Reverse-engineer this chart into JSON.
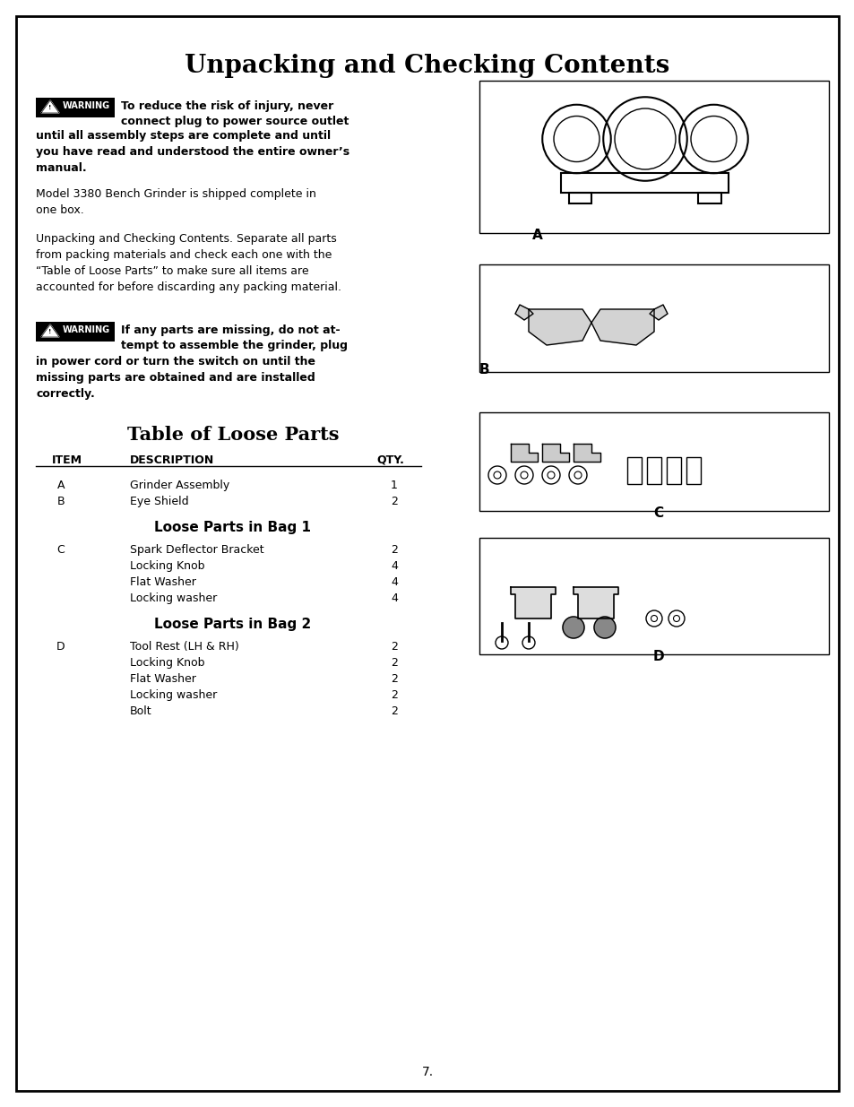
{
  "title": "Unpacking and Checking Contents",
  "title_fontsize": 20,
  "bg_color": "#ffffff",
  "border_color": "#000000",
  "page_number": "7.",
  "warning1_text_inline": "To reduce the risk of injury, never connect plug to power source outlet",
  "warning1_text_below": "until all assembly steps are complete and until\nyou have read and understood the entire owner’s\nmanual.",
  "para1": "Model 3380 Bench Grinder is shipped complete in\none box.",
  "para2": "Unpacking and Checking Contents. Separate all parts\nfrom packing materials and check each one with the\n“Table of Loose Parts” to make sure all items are\naccounted for before discarding any packing material.",
  "warning2_text_inline": "If any parts are missing, do not at-\ntempt to assemble the grinder, plug",
  "warning2_text_below": "in power cord or turn the switch on until the\nmissing parts are obtained and are installed\ncorrectly.",
  "table_title": "Table of Loose Parts",
  "col_headers": [
    "ITEM",
    "DESCRIPTION",
    "QTY."
  ],
  "rows": [
    {
      "item": "A",
      "desc": "Grinder Assembly",
      "qty": "1"
    },
    {
      "item": "B",
      "desc": "Eye Shield",
      "qty": "2"
    }
  ],
  "bag1_title": "Loose Parts in Bag 1",
  "bag1_item": "C",
  "bag1_parts": [
    {
      "desc": "Spark Deflector Bracket",
      "qty": "2"
    },
    {
      "desc": "Locking Knob",
      "qty": "4"
    },
    {
      "desc": "Flat Washer",
      "qty": "4"
    },
    {
      "desc": "Locking washer",
      "qty": "4"
    }
  ],
  "bag2_title": "Loose Parts in Bag 2",
  "bag2_item": "D",
  "bag2_parts": [
    {
      "desc": "Tool Rest (LH & RH)",
      "qty": "2"
    },
    {
      "desc": "Locking Knob",
      "qty": "2"
    },
    {
      "desc": "Flat Washer",
      "qty": "2"
    },
    {
      "desc": "Locking washer",
      "qty": "2"
    },
    {
      "desc": "Bolt",
      "qty": "2"
    }
  ]
}
